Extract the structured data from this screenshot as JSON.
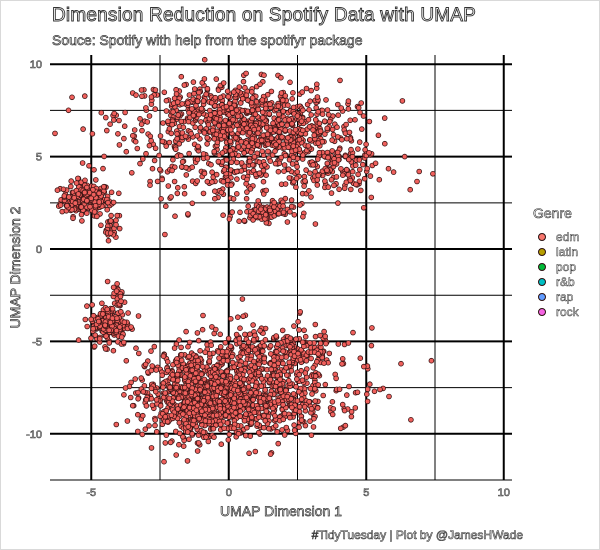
{
  "title": "Dimension Reduction on Spotify Data with UMAP",
  "subtitle": "Souce: Spotify with help from the spotifyr package",
  "caption": "#TidyTuesday | Plot by @JamesHWade",
  "legend": {
    "title": "Genre",
    "items": [
      {
        "label": "edm",
        "color": "#f8766d"
      },
      {
        "label": "latin",
        "color": "#b79f00"
      },
      {
        "label": "pop",
        "color": "#00ba38"
      },
      {
        "label": "r&b",
        "color": "#00bfc4"
      },
      {
        "label": "rap",
        "color": "#619cff"
      },
      {
        "label": "rock",
        "color": "#f564e3"
      }
    ]
  },
  "chart_data": {
    "type": "scatter",
    "title": "Dimension Reduction on Spotify Data with UMAP",
    "subtitle": "Souce: Spotify with help from the spotifyr package",
    "xlabel": "UMAP Dimension 1",
    "ylabel": "UMAP Dimension 2",
    "xlim": [
      -6.5,
      10.3
    ],
    "ylim": [
      -12.5,
      10.5
    ],
    "x_ticks": [
      -5,
      0,
      5,
      10
    ],
    "y_ticks": [
      10,
      5,
      0,
      -5,
      -10
    ],
    "grid": true,
    "legend_position": "right",
    "point_color": "#f0605c",
    "point_outline": "#3a1414",
    "series_name": "edm",
    "note": "point cloud of individual tracks, approximated as dense clusters plus scattered points",
    "clusters": [
      {
        "cx": -5.2,
        "cy": 2.7,
        "sx": 0.45,
        "sy": 0.45,
        "n": 220,
        "density": "dense"
      },
      {
        "cx": -4.3,
        "cy": 1.2,
        "sx": 0.12,
        "sy": 0.35,
        "n": 30,
        "density": "dense"
      },
      {
        "cx": 0.0,
        "cy": 7.3,
        "sx": 2.0,
        "sy": 0.9,
        "n": 520,
        "density": "dense"
      },
      {
        "cx": 2.0,
        "cy": 6.0,
        "sx": 1.4,
        "sy": 0.9,
        "n": 300,
        "density": "medium"
      },
      {
        "cx": 0.6,
        "cy": 4.6,
        "sx": 2.3,
        "sy": 1.3,
        "n": 380,
        "density": "sparse"
      },
      {
        "cx": 1.3,
        "cy": 2.0,
        "sx": 0.5,
        "sy": 0.25,
        "n": 80,
        "density": "dense"
      },
      {
        "cx": 3.9,
        "cy": 4.0,
        "sx": 0.6,
        "sy": 0.6,
        "n": 70,
        "density": "medium"
      },
      {
        "cx": -4.3,
        "cy": -4.1,
        "sx": 0.35,
        "sy": 0.55,
        "n": 180,
        "density": "dense"
      },
      {
        "cx": -4.0,
        "cy": -2.6,
        "sx": 0.12,
        "sy": 0.4,
        "n": 25,
        "density": "dense"
      },
      {
        "cx": -1.3,
        "cy": -7.9,
        "sx": 1.0,
        "sy": 1.2,
        "n": 620,
        "density": "dense"
      },
      {
        "cx": 0.6,
        "cy": -8.6,
        "sx": 1.5,
        "sy": 0.8,
        "n": 320,
        "density": "dense"
      },
      {
        "cx": 1.2,
        "cy": -7.0,
        "sx": 1.7,
        "sy": 1.3,
        "n": 480,
        "density": "sparse"
      },
      {
        "cx": 1.8,
        "cy": -5.5,
        "sx": 1.3,
        "sy": 0.6,
        "n": 160,
        "density": "sparse"
      }
    ],
    "outliers": [
      {
        "x": 6.4,
        "y": 5.0
      },
      {
        "x": 4.9,
        "y": 7.2
      },
      {
        "x": 5.3,
        "y": -7.7
      },
      {
        "x": 5.5,
        "y": -7.6
      },
      {
        "x": 4.6,
        "y": -8.6
      },
      {
        "x": 4.5,
        "y": 5.2
      }
    ]
  }
}
